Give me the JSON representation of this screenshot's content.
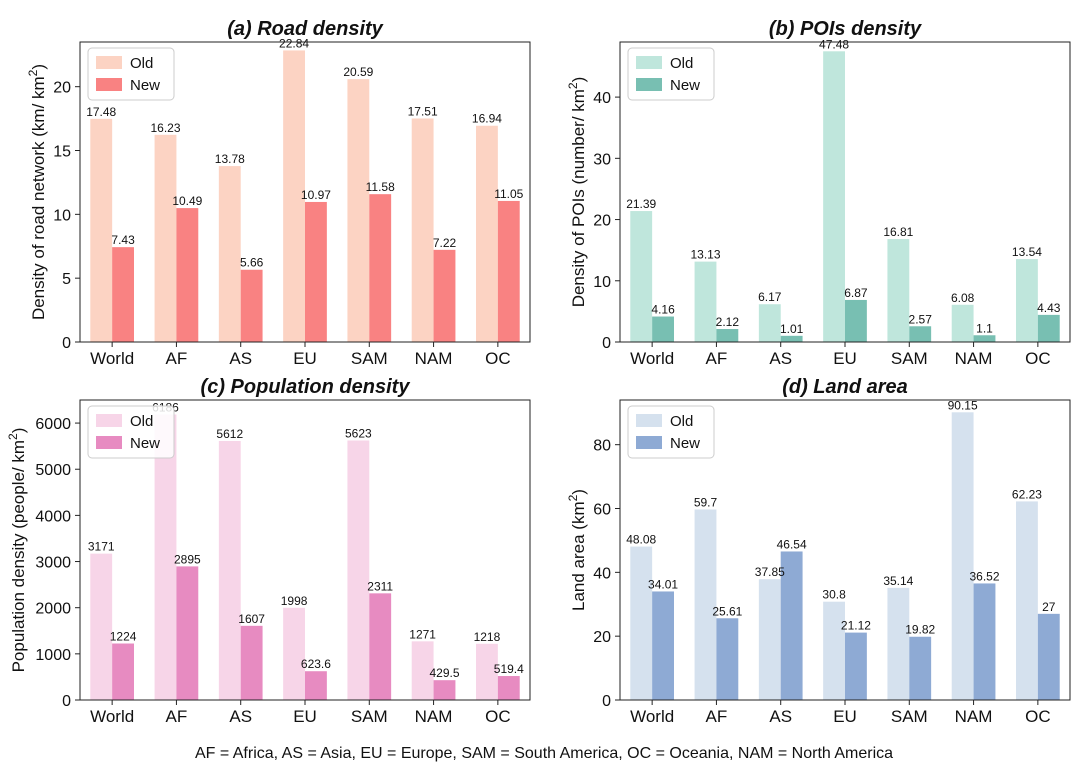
{
  "footnote": "AF = Africa, AS = Asia, EU = Europe, SAM = South America, OC = Oceania, NAM = North America",
  "chart_data": [
    {
      "type": "bar",
      "title": "(a) Road density",
      "ylabel": "Density of road network (km/ km²)",
      "ylabel_main": "Density of road network (km/ km",
      "ylabel_sup": "2",
      "ylabel_tail": ")",
      "categories": [
        "World",
        "AF",
        "AS",
        "EU",
        "SAM",
        "NAM",
        "OC"
      ],
      "ylim": [
        0,
        23.5
      ],
      "yticks": [
        0,
        5,
        10,
        15,
        20
      ],
      "legend": "top-left",
      "series": [
        {
          "name": "Old",
          "color": "#fcd3c3",
          "values": [
            17.48,
            16.23,
            13.78,
            22.84,
            20.59,
            17.51,
            16.94
          ],
          "labels": [
            "17.48",
            "16.23",
            "13.78",
            "22.84",
            "20.59",
            "17.51",
            "16.94"
          ]
        },
        {
          "name": "New",
          "color": "#f98282",
          "values": [
            7.43,
            10.49,
            5.66,
            10.97,
            11.58,
            7.22,
            11.05
          ],
          "labels": [
            "7.43",
            "10.49",
            "5.66",
            "10.97",
            "11.58",
            "7.22",
            "11.05"
          ]
        }
      ]
    },
    {
      "type": "bar",
      "title": "(b) POIs density",
      "ylabel": "Density of POIs (number/ km²)",
      "ylabel_main": "Density of POIs (number/ km",
      "ylabel_sup": "2",
      "ylabel_tail": ")",
      "categories": [
        "World",
        "AF",
        "AS",
        "EU",
        "SAM",
        "NAM",
        "OC"
      ],
      "ylim": [
        0,
        49
      ],
      "yticks": [
        0,
        10,
        20,
        30,
        40
      ],
      "legend": "top-left",
      "series": [
        {
          "name": "Old",
          "color": "#bfe6dc",
          "values": [
            21.39,
            13.13,
            6.17,
            47.48,
            16.81,
            6.08,
            13.54
          ],
          "labels": [
            "21.39",
            "13.13",
            "6.17",
            "47.48",
            "16.81",
            "6.08",
            "13.54"
          ]
        },
        {
          "name": "New",
          "color": "#78bfb2",
          "values": [
            4.16,
            2.12,
            1.01,
            6.87,
            2.57,
            1.1,
            4.43
          ],
          "labels": [
            "4.16",
            "2.12",
            "1.01",
            "6.87",
            "2.57",
            "1.1",
            "4.43"
          ]
        }
      ]
    },
    {
      "type": "bar",
      "title": "(c) Population density",
      "ylabel": "Population density (people/ km²)",
      "ylabel_main": "Population density (people/ km",
      "ylabel_sup": "2",
      "ylabel_tail": ")",
      "categories": [
        "World",
        "AF",
        "AS",
        "EU",
        "SAM",
        "NAM",
        "OC"
      ],
      "ylim": [
        0,
        6500
      ],
      "yticks": [
        0,
        1000,
        2000,
        3000,
        4000,
        5000,
        6000
      ],
      "legend": "top-left",
      "series": [
        {
          "name": "Old",
          "color": "#f7d5e8",
          "values": [
            3171,
            6186,
            5612,
            1998,
            5623,
            1271,
            1218
          ],
          "labels": [
            "3171",
            "6186",
            "5612",
            "1998",
            "5623",
            "1271",
            "1218"
          ]
        },
        {
          "name": "New",
          "color": "#e78bc1",
          "values": [
            1224,
            2895,
            1607,
            623.6,
            2311,
            429.5,
            519.4
          ],
          "labels": [
            "1224",
            "2895",
            "1607",
            "623.6",
            "2311",
            "429.5",
            "519.4"
          ]
        }
      ]
    },
    {
      "type": "bar",
      "title": "(d) Land area",
      "ylabel": "Land area (km²)",
      "ylabel_main": "Land area (km",
      "ylabel_sup": "2",
      "ylabel_tail": ")",
      "categories": [
        "World",
        "AF",
        "AS",
        "EU",
        "SAM",
        "NAM",
        "OC"
      ],
      "ylim": [
        0,
        94
      ],
      "yticks": [
        0,
        20,
        40,
        60,
        80
      ],
      "legend": "top-left",
      "series": [
        {
          "name": "Old",
          "color": "#d5e1ee",
          "values": [
            48.08,
            59.7,
            37.85,
            30.8,
            35.14,
            90.15,
            62.23
          ],
          "labels": [
            "48.08",
            "59.7",
            "37.85",
            "30.8",
            "35.14",
            "90.15",
            "62.23"
          ]
        },
        {
          "name": "New",
          "color": "#8eaad4",
          "values": [
            34.01,
            25.61,
            46.54,
            21.12,
            19.82,
            36.52,
            27
          ],
          "labels": [
            "34.01",
            "25.61",
            "46.54",
            "21.12",
            "19.82",
            "36.52",
            "27"
          ]
        }
      ]
    }
  ]
}
